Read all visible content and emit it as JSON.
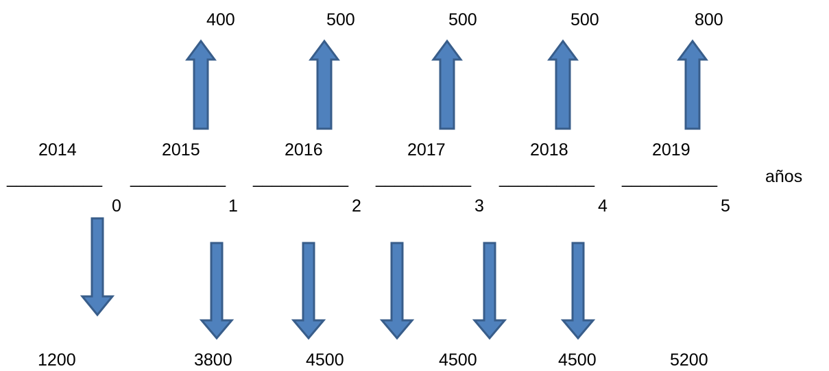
{
  "inflows": [
    {
      "value": "400"
    },
    {
      "value": "500"
    },
    {
      "value": "500"
    },
    {
      "value": "500"
    },
    {
      "value": "800"
    }
  ],
  "years": [
    "2014",
    "2015",
    "2016",
    "2017",
    "2018",
    "2019"
  ],
  "segments": [
    "__________",
    "__________",
    "__________",
    "__________",
    "__________",
    "__________"
  ],
  "axis_unit": "años",
  "periods": [
    "0",
    "1",
    "2",
    "3",
    "4",
    "5"
  ],
  "outflows": [
    "1200",
    "3800",
    "4500",
    "4500",
    "4500",
    "5200"
  ],
  "colors": {
    "arrow_fill": "#4f81bd",
    "arrow_stroke": "#385d8a",
    "text": "#000000"
  }
}
